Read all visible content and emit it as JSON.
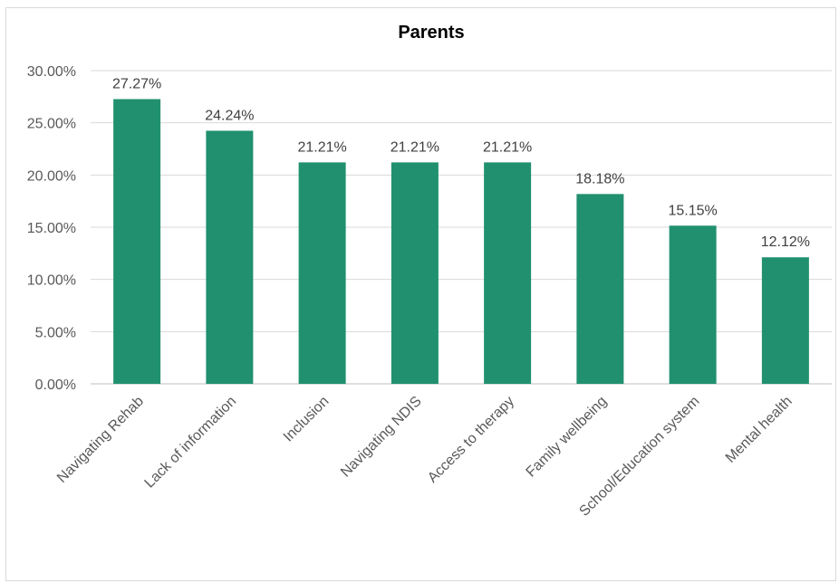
{
  "chart_data": {
    "type": "bar",
    "title": "Parents",
    "categories": [
      "Navigating Rehab",
      "Lack of information",
      "Inclusion",
      "Navigating NDIS",
      "Access to therapy",
      "Family wellbeing",
      "School/Education system",
      "Mental health"
    ],
    "values": [
      27.27,
      24.24,
      21.21,
      21.21,
      21.21,
      18.18,
      15.15,
      12.12
    ],
    "data_labels": [
      "27.27%",
      "24.24%",
      "21.21%",
      "21.21%",
      "21.21%",
      "18.18%",
      "15.15%",
      "12.12%"
    ],
    "y_ticks": [
      "0.00%",
      "5.00%",
      "10.00%",
      "15.00%",
      "20.00%",
      "25.00%",
      "30.00%"
    ],
    "xlabel": "",
    "ylabel": "",
    "ylim": [
      0,
      30
    ],
    "grid": true,
    "legend": "none",
    "bar_color": "#21906f"
  }
}
